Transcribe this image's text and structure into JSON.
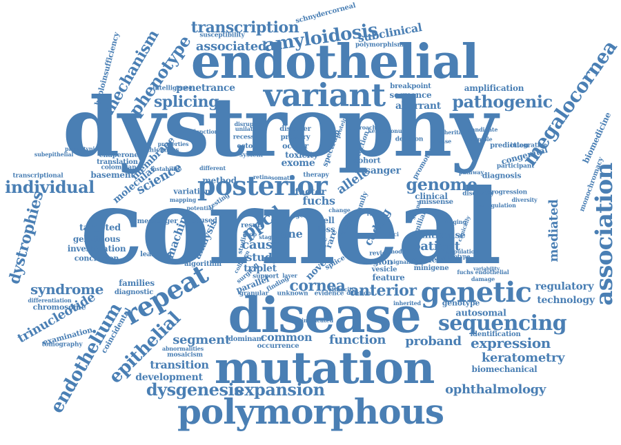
{
  "color": "#4a7fb4",
  "words": [
    "corneal",
    "dystrophy",
    "disease",
    "mutation",
    "endothelial",
    "polymorphous",
    "variant",
    "posterior",
    "genetic",
    "sequencing",
    "association",
    "repeat",
    "epithelial",
    "endothelium",
    "expansion",
    "dysgenesis",
    "genome",
    "cornea",
    "anterior",
    "megalocornea",
    "amyloidosis",
    "transcription",
    "phenotype",
    "mechanism",
    "pathogenic",
    "splicing",
    "individual",
    "dystrophies",
    "syndrome",
    "trinucleotide",
    "keratometry",
    "ophthalmology",
    "expression",
    "proband",
    "patient",
    "mediated",
    "regulatory",
    "technology",
    "segment",
    "transition",
    "development",
    "function",
    "common",
    "associated",
    "subclinical",
    "penetrance",
    "aberrant",
    "sequence",
    "amplification",
    "breakpoint",
    "biomedicine",
    "schnydercorneal",
    "polymorphism",
    "susceptibility",
    "haploinsufficiency",
    "intelligence",
    "science",
    "molecular",
    "machine",
    "targeted",
    "gelatinous",
    "investigation",
    "conclusion",
    "families",
    "diagnostic",
    "chromosome",
    "differentiation",
    "examination",
    "tomography",
    "coincidental",
    "mosaicism",
    "abnormalities",
    "dominant",
    "occurrence",
    "autosomal",
    "genotype",
    "antisense",
    "carriers",
    "minigene",
    "identification",
    "biomechanical",
    "ppcd",
    "cone",
    "cause",
    "study",
    "triplet",
    "novel",
    "allele",
    "fuchs",
    "factor",
    "exome",
    "toxicity",
    "ocular",
    "primary",
    "disorder",
    "recessive",
    "ectopic",
    "system",
    "sanger",
    "cohort",
    "clinical",
    "missense",
    "discovery",
    "diagnosis",
    "congenital",
    "prediction",
    "integrative",
    "participant",
    "monochromacy",
    "membrane",
    "thickness",
    "chaperone",
    "translation",
    "colombian",
    "basement",
    "transcriptional",
    "phenotypic",
    "subepithelial",
    "variation",
    "properties",
    "method",
    "learning",
    "analysis",
    "algorithm",
    "caused",
    "messenger",
    "coding",
    "cell",
    "loss",
    "region",
    "review",
    "feature",
    "vesicle",
    "granular",
    "unknown",
    "evidence",
    "implicated",
    "parallel",
    "support",
    "finding",
    "unilateral",
    "functional",
    "instability",
    "testing",
    "disruption",
    "decision",
    "progression",
    "dysregulation",
    "family",
    "lattice",
    "result",
    "gene",
    "rare",
    "type",
    "surgical",
    "stage",
    "studies",
    "collagen",
    "splice",
    "mapping",
    "potential",
    "different",
    "spectrum",
    "detection",
    "promoter",
    "familial",
    "strand",
    "model",
    "signaling",
    "retina",
    "somatic",
    "ethnicity",
    "protein",
    "approach",
    "imaging",
    "clinically",
    "fuchs endothelial",
    "damage",
    "variability",
    "pathway",
    "sample",
    "diversity",
    "therapy",
    "population",
    "deletion",
    "inherited",
    "loci",
    "risk",
    "keratoconus",
    "layer",
    "haplotype",
    "kinase",
    "candidate",
    "inheritance",
    "drop",
    "change"
  ]
}
